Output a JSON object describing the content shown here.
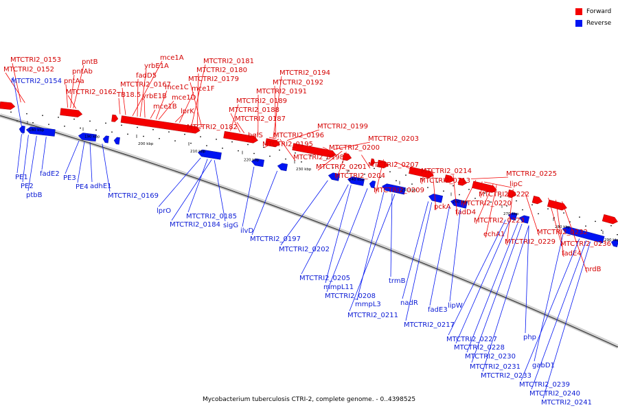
{
  "legend": {
    "forward": {
      "label": "Forward",
      "color": "#f40000"
    },
    "reverse": {
      "label": "Reverse",
      "color": "#0014f2"
    }
  },
  "caption": "Mycobacterium tuberculosis CTRI-2, complete genome. - 0..4398525",
  "ticks": [
    "180 kbp",
    "190 kbp",
    "200 kbp",
    "210 kbp",
    "220 kbp",
    "230 kbp",
    "240 kbp",
    "250 kbp",
    "260 kbp",
    "270 kbp",
    "280 kbp",
    "290 kbp"
  ],
  "forward_labels": [
    "MTCTRI2_0153",
    "MTCTRI2_0152",
    "pntB",
    "pntAb",
    "pntAa",
    "MTCTRI2_0162",
    "mce1A",
    "yrbE1A",
    "fadD5",
    "MTCTRI2_0167",
    "TB18.5",
    "yrbE1B",
    "mce1C",
    "mce1B",
    "mce1D",
    "mce1F",
    "lprK",
    "MTCTRI2_0181",
    "MTCTRI2_0180",
    "MTCTRI2_0179",
    "MTCTRI2_0182",
    "MTCTRI2_0194",
    "MTCTRI2_0192",
    "MTCTRI2_0191",
    "MTCTRI2_0189",
    "MTCTRI2_0188",
    "MTCTRI2_0187",
    "bglS",
    "MTCTRI2_0199",
    "MTCTRI2_0196",
    "MTCTRI2_0195",
    "MTCTRI2_0200",
    "MTCTRI2_0198",
    "MTCTRI2_0203",
    "MTCTRI2_0201",
    "MTCTRI2_0204",
    "MTCTRI2_0207",
    "MTCTRI2_0209",
    "MTCTRI2_0214",
    "MTCTRI2_0213",
    "pckA",
    "fadD4",
    "MTCTRI2_0225",
    "lipC",
    "MTCTRI2_0222",
    "MTCTRI2_0220",
    "MTCTRI2_0223",
    "echA1",
    "MTCTRI2_0229",
    "MTCTRI2_0232",
    "MTCTRI2_0236",
    "fadE4",
    "nrdB"
  ],
  "reverse_labels": [
    "MTCTRI2_0154",
    "PE1",
    "PE2",
    "ptbB",
    "fadE2",
    "PE3",
    "PE4",
    "adhE1",
    "MTCTRI2_0169",
    "lprO",
    "MTCTRI2_0185",
    "MTCTRI2_0184",
    "sigG",
    "ilvD",
    "MTCTRI2_0197",
    "MTCTRI2_0202",
    "MTCTRI2_0205",
    "mmpL11",
    "MTCTRI2_0208",
    "mmpL3",
    "trmB",
    "MTCTRI2_0211",
    "nadR",
    "MTCTRI2_0217",
    "fadE3",
    "lipW",
    "MTCTRI2_0227",
    "php",
    "MTCTRI2_0228",
    "MTCTRI2_0230",
    "MTCTRI2_0231",
    "MTCTRI2_0233",
    "gabD1",
    "MTCTRI2_0239",
    "MTCTRI2_0240",
    "MTCTRI2_0241"
  ]
}
